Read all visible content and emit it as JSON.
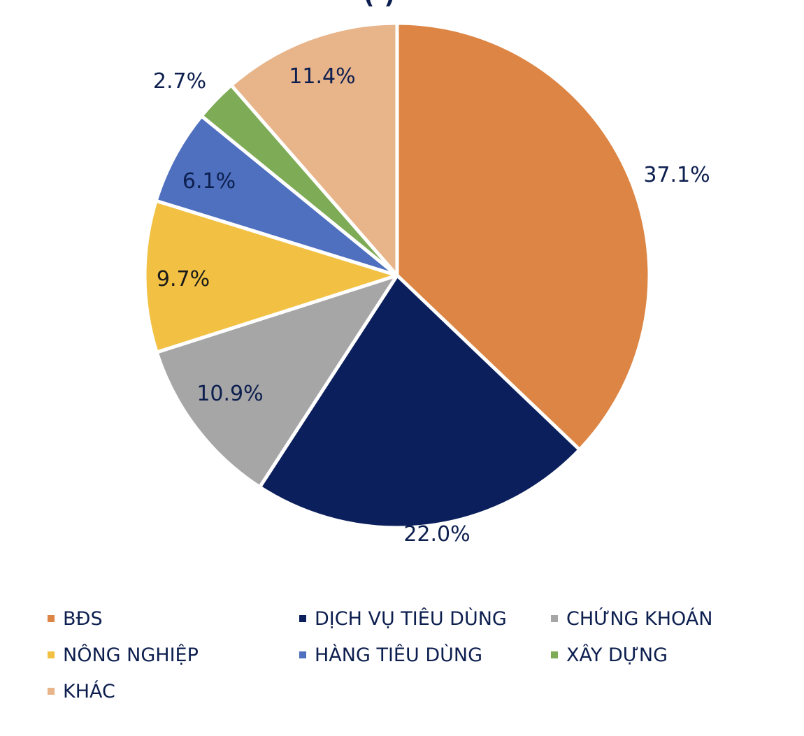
{
  "chart_data": {
    "type": "pie",
    "title": "(…)",
    "categories": [
      "BĐS",
      "DỊCH VỤ TIÊU DÙNG",
      "CHỨNG KHOÁN",
      "NÔNG NGHIỆP",
      "HÀNG TIÊU DÙNG",
      "XÂY DỰNG",
      "KHÁC"
    ],
    "values": [
      37.1,
      22.0,
      10.9,
      9.7,
      6.1,
      2.7,
      11.4
    ],
    "labels": [
      "37.1%",
      "22.0%",
      "10.9%",
      "9.7%",
      "6.1%",
      "2.7%",
      "11.4%"
    ],
    "colors": [
      "#dc8544",
      "#0b1f5c",
      "#a6a6a6",
      "#f2c144",
      "#4e70bf",
      "#7eab56",
      "#e8b48a"
    ],
    "label_colors": [
      "#0d1f4f",
      "#0d1f4f",
      "#0d1f4f",
      "#1a1a1a",
      "#0d1f4f",
      "#0d1f4f",
      "#0d1f4f"
    ],
    "start_angle_deg": 0,
    "direction": "clockwise",
    "legend_position": "bottom",
    "unit": "%"
  },
  "page": {
    "title_fragment": "(        )",
    "left_fragment": ")"
  },
  "legend": {
    "items": [
      {
        "label": "BĐS",
        "color": "#dc8544"
      },
      {
        "label": "DỊCH VỤ TIÊU DÙNG",
        "color": "#0b1f5c"
      },
      {
        "label": "CHỨNG KHOÁN",
        "color": "#a6a6a6"
      },
      {
        "label": "NÔNG NGHIỆP",
        "color": "#f2c144"
      },
      {
        "label": "HÀNG TIÊU DÙNG",
        "color": "#4e70bf"
      },
      {
        "label": "XÂY DỰNG",
        "color": "#7eab56"
      },
      {
        "label": "KHÁC",
        "color": "#e8b48a"
      }
    ]
  }
}
